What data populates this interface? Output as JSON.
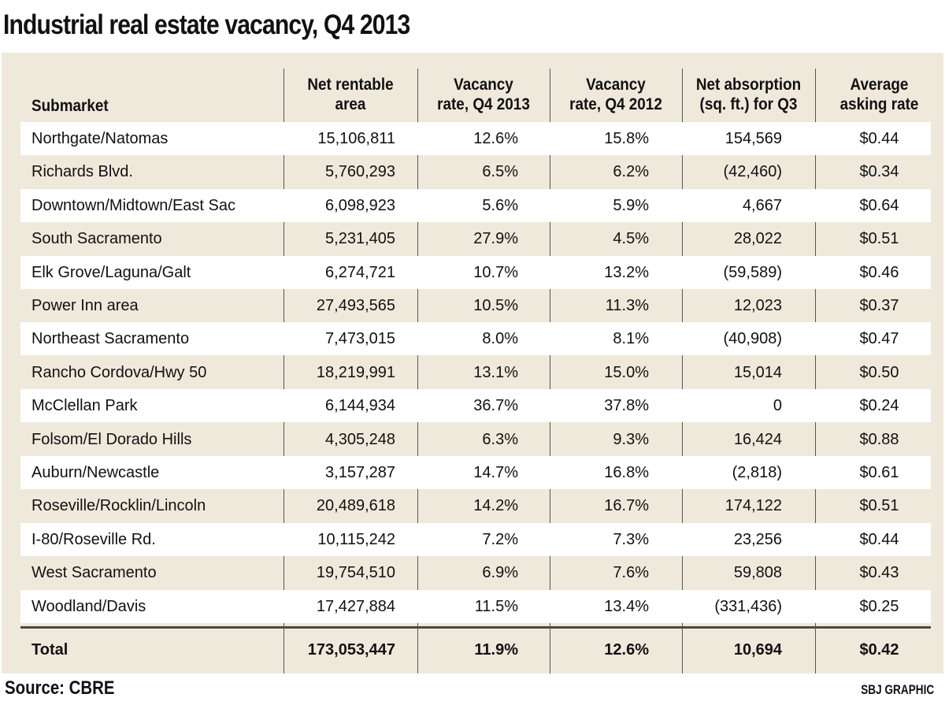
{
  "title": "Industrial real estate vacancy, Q4 2013",
  "source": "Source: CBRE",
  "credit": "SBJ GRAPHIC",
  "colors": {
    "panel": "#efe9dc",
    "row_alt": "#ffffff",
    "text": "#111111"
  },
  "chart_data": {
    "type": "table",
    "columns": [
      "Submarket",
      "Net rentable area",
      "Vacancy rate, Q4 2013",
      "Vacancy rate, Q4 2012",
      "Net absorption (sq. ft.) for Q3",
      "Average asking rate"
    ],
    "rows": [
      [
        "Northgate/Natomas",
        "15,106,811",
        "12.6%",
        "15.8%",
        "154,569",
        "$0.44"
      ],
      [
        "Richards Blvd.",
        "5,760,293",
        "6.5%",
        "6.2%",
        "(42,460)",
        "$0.34"
      ],
      [
        "Downtown/Midtown/East Sac",
        "6,098,923",
        "5.6%",
        "5.9%",
        "4,667",
        "$0.64"
      ],
      [
        "South Sacramento",
        "5,231,405",
        "27.9%",
        "4.5%",
        "28,022",
        "$0.51"
      ],
      [
        "Elk Grove/Laguna/Galt",
        "6,274,721",
        "10.7%",
        "13.2%",
        "(59,589)",
        "$0.46"
      ],
      [
        "Power Inn area",
        "27,493,565",
        "10.5%",
        "11.3%",
        "12,023",
        "$0.37"
      ],
      [
        "Northeast Sacramento",
        "7,473,015",
        "8.0%",
        "8.1%",
        "(40,908)",
        "$0.47"
      ],
      [
        "Rancho Cordova/Hwy 50",
        "18,219,991",
        "13.1%",
        "15.0%",
        "15,014",
        "$0.50"
      ],
      [
        "McClellan Park",
        "6,144,934",
        "36.7%",
        "37.8%",
        "0",
        "$0.24"
      ],
      [
        "Folsom/El Dorado Hills",
        "4,305,248",
        "6.3%",
        "9.3%",
        "16,424",
        "$0.88"
      ],
      [
        "Auburn/Newcastle",
        "3,157,287",
        "14.7%",
        "16.8%",
        "(2,818)",
        "$0.61"
      ],
      [
        "Roseville/Rocklin/Lincoln",
        "20,489,618",
        "14.2%",
        "16.7%",
        "174,122",
        "$0.51"
      ],
      [
        "I-80/Roseville Rd.",
        "10,115,242",
        "7.2%",
        "7.3%",
        "23,256",
        "$0.44"
      ],
      [
        "West Sacramento",
        "19,754,510",
        "6.9%",
        "7.6%",
        "59,808",
        "$0.43"
      ],
      [
        "Woodland/Davis",
        "17,427,884",
        "11.5%",
        "13.4%",
        "(331,436)",
        "$0.25"
      ]
    ],
    "total": [
      "Total",
      "173,053,447",
      "11.9%",
      "12.6%",
      "10,694",
      "$0.42"
    ]
  }
}
